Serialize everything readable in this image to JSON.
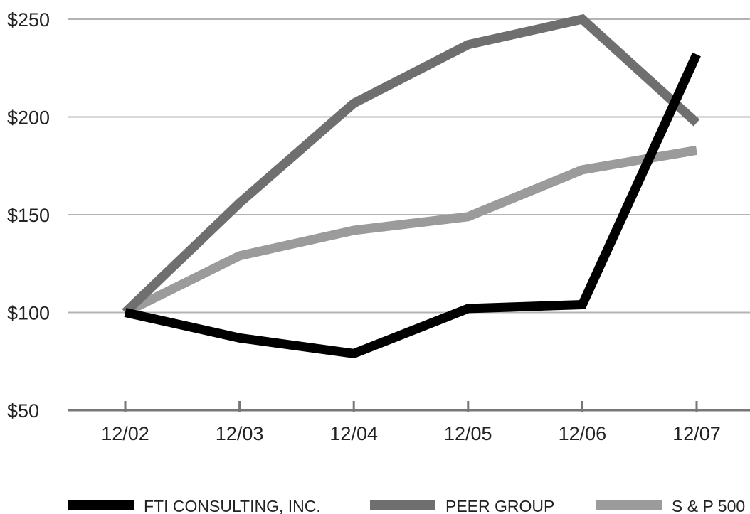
{
  "chart_data": {
    "type": "line",
    "title": "",
    "xlabel": "",
    "ylabel": "",
    "categories": [
      "12/02",
      "12/03",
      "12/04",
      "12/05",
      "12/06",
      "12/07"
    ],
    "y_ticks": [
      50,
      100,
      150,
      200,
      250
    ],
    "y_tick_labels": [
      "$50",
      "$100",
      "$150",
      "$200",
      "$250"
    ],
    "ylim": [
      50,
      250
    ],
    "grid": true,
    "legend_position": "bottom",
    "series": [
      {
        "name": "FTI CONSULTING, INC.",
        "color": "#000000",
        "values": [
          100,
          87,
          79,
          102,
          104,
          232
        ]
      },
      {
        "name": "PEER GROUP",
        "color": "#6f6f6f",
        "values": [
          100,
          156,
          207,
          237,
          250,
          197
        ]
      },
      {
        "name": "S & P 500",
        "color": "#9b9b9b",
        "values": [
          100,
          129,
          142,
          149,
          173,
          183
        ]
      }
    ]
  }
}
